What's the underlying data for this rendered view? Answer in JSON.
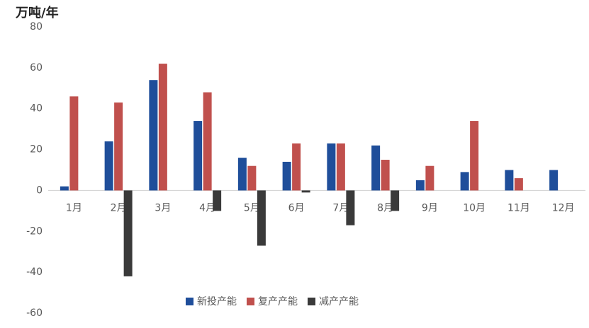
{
  "chart_data": {
    "type": "bar",
    "y_label": "万吨/年",
    "categories": [
      "1月",
      "2月",
      "3月",
      "4月",
      "5月",
      "6月",
      "7月",
      "8月",
      "9月",
      "10月",
      "11月",
      "12月"
    ],
    "series": [
      {
        "name": "新投产能",
        "color": "#1f4e9a",
        "values": [
          2,
          24,
          54,
          34,
          16,
          14,
          23,
          22,
          5,
          9,
          10,
          10
        ]
      },
      {
        "name": "复产产能",
        "color": "#c0504d",
        "values": [
          46,
          43,
          62,
          48,
          12,
          23,
          23,
          15,
          12,
          34,
          6,
          null
        ]
      },
      {
        "name": "减产产能",
        "color": "#3a3a3a",
        "values": [
          null,
          -42,
          null,
          -10,
          -27,
          -1,
          -17,
          -10,
          null,
          null,
          null,
          null
        ]
      }
    ],
    "ylim": [
      -60,
      80
    ],
    "yticks": [
      -60,
      -40,
      -20,
      0,
      20,
      40,
      60,
      80
    ],
    "legend": "bottom"
  }
}
